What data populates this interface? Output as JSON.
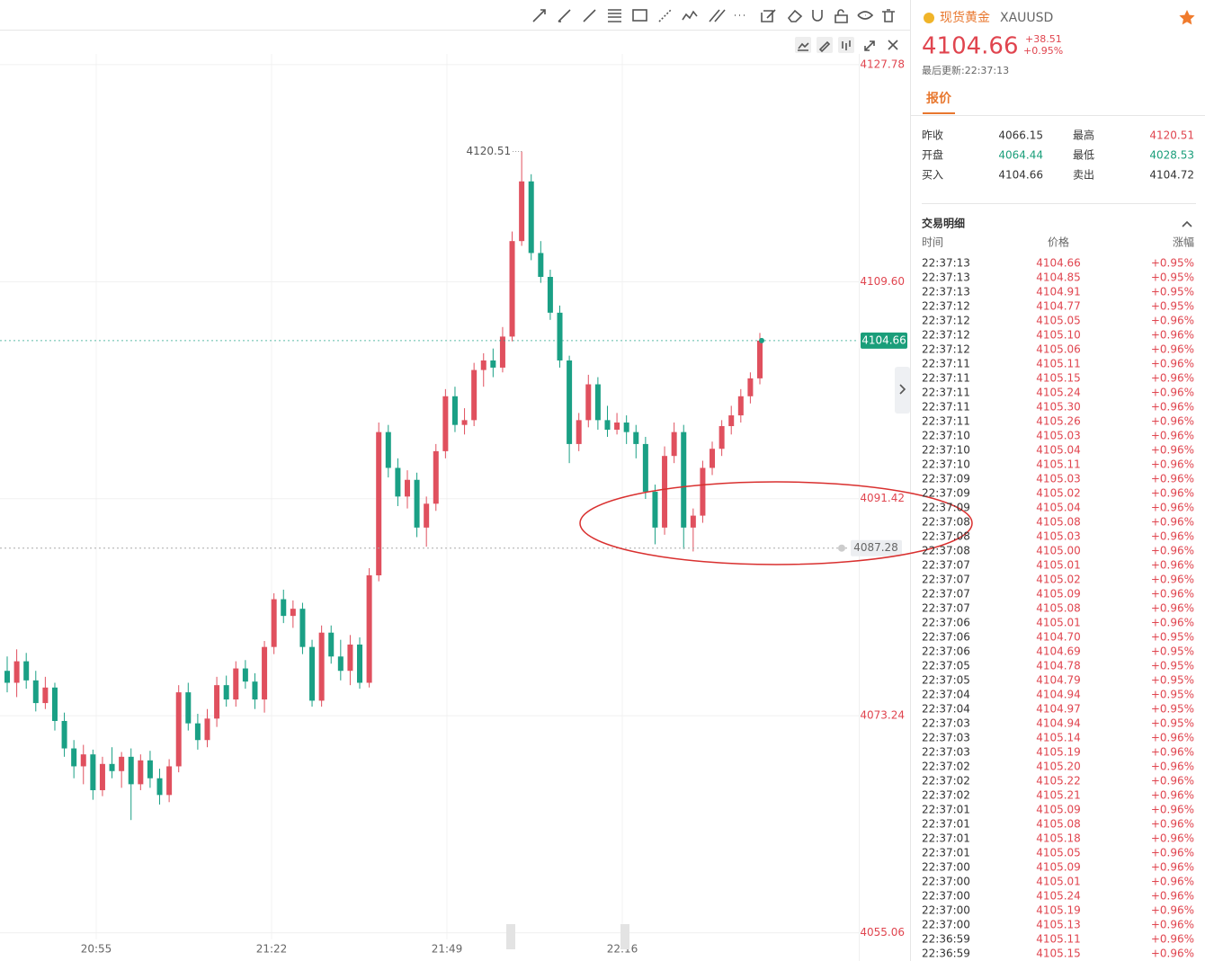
{
  "header": {
    "name": "现货黄金",
    "symbol": "XAUUSD",
    "price": "4104.66",
    "change": "+38.51",
    "change_pct": "+0.95%",
    "updated": "最后更新:22:37:13"
  },
  "tab": "报价",
  "stats": [
    {
      "label": "昨收",
      "value": "4066.15",
      "color": "#333333"
    },
    {
      "label": "最高",
      "value": "4120.51",
      "color": "#e0454f"
    },
    {
      "label": "开盘",
      "value": "4064.44",
      "color": "#1a9e7a"
    },
    {
      "label": "最低",
      "value": "4028.53",
      "color": "#1a9e7a"
    },
    {
      "label": "买入",
      "value": "4104.66",
      "color": "#333333"
    },
    {
      "label": "卖出",
      "value": "4104.72",
      "color": "#333333"
    }
  ],
  "trades": {
    "title": "交易明细",
    "columns": [
      "时间",
      "价格",
      "涨幅"
    ],
    "rows": [
      [
        "22:37:13",
        "4104.66",
        "+0.95%"
      ],
      [
        "22:37:13",
        "4104.85",
        "+0.95%"
      ],
      [
        "22:37:13",
        "4104.91",
        "+0.95%"
      ],
      [
        "22:37:12",
        "4104.77",
        "+0.95%"
      ],
      [
        "22:37:12",
        "4105.05",
        "+0.96%"
      ],
      [
        "22:37:12",
        "4105.10",
        "+0.96%"
      ],
      [
        "22:37:12",
        "4105.06",
        "+0.96%"
      ],
      [
        "22:37:11",
        "4105.11",
        "+0.96%"
      ],
      [
        "22:37:11",
        "4105.15",
        "+0.96%"
      ],
      [
        "22:37:11",
        "4105.24",
        "+0.96%"
      ],
      [
        "22:37:11",
        "4105.30",
        "+0.96%"
      ],
      [
        "22:37:11",
        "4105.26",
        "+0.96%"
      ],
      [
        "22:37:10",
        "4105.03",
        "+0.96%"
      ],
      [
        "22:37:10",
        "4105.04",
        "+0.96%"
      ],
      [
        "22:37:10",
        "4105.11",
        "+0.96%"
      ],
      [
        "22:37:09",
        "4105.03",
        "+0.96%"
      ],
      [
        "22:37:09",
        "4105.02",
        "+0.96%"
      ],
      [
        "22:37:09",
        "4105.04",
        "+0.96%"
      ],
      [
        "22:37:08",
        "4105.08",
        "+0.96%"
      ],
      [
        "22:37:08",
        "4105.03",
        "+0.96%"
      ],
      [
        "22:37:08",
        "4105.00",
        "+0.96%"
      ],
      [
        "22:37:07",
        "4105.01",
        "+0.96%"
      ],
      [
        "22:37:07",
        "4105.02",
        "+0.96%"
      ],
      [
        "22:37:07",
        "4105.09",
        "+0.96%"
      ],
      [
        "22:37:07",
        "4105.08",
        "+0.96%"
      ],
      [
        "22:37:06",
        "4105.01",
        "+0.96%"
      ],
      [
        "22:37:06",
        "4104.70",
        "+0.95%"
      ],
      [
        "22:37:06",
        "4104.69",
        "+0.95%"
      ],
      [
        "22:37:05",
        "4104.78",
        "+0.95%"
      ],
      [
        "22:37:05",
        "4104.79",
        "+0.95%"
      ],
      [
        "22:37:04",
        "4104.94",
        "+0.95%"
      ],
      [
        "22:37:04",
        "4104.97",
        "+0.95%"
      ],
      [
        "22:37:03",
        "4104.94",
        "+0.95%"
      ],
      [
        "22:37:03",
        "4105.14",
        "+0.96%"
      ],
      [
        "22:37:03",
        "4105.19",
        "+0.96%"
      ],
      [
        "22:37:02",
        "4105.20",
        "+0.96%"
      ],
      [
        "22:37:02",
        "4105.22",
        "+0.96%"
      ],
      [
        "22:37:02",
        "4105.21",
        "+0.96%"
      ],
      [
        "22:37:01",
        "4105.09",
        "+0.96%"
      ],
      [
        "22:37:01",
        "4105.08",
        "+0.96%"
      ],
      [
        "22:37:01",
        "4105.18",
        "+0.96%"
      ],
      [
        "22:37:01",
        "4105.05",
        "+0.96%"
      ],
      [
        "22:37:00",
        "4105.09",
        "+0.96%"
      ],
      [
        "22:37:00",
        "4105.01",
        "+0.96%"
      ],
      [
        "22:37:00",
        "4105.24",
        "+0.96%"
      ],
      [
        "22:37:00",
        "4105.19",
        "+0.96%"
      ],
      [
        "22:37:00",
        "4105.13",
        "+0.96%"
      ],
      [
        "22:36:59",
        "4105.11",
        "+0.96%"
      ],
      [
        "22:36:59",
        "4105.15",
        "+0.96%"
      ]
    ]
  },
  "chart": {
    "type": "candlestick",
    "ylim": [
      4054.5,
      4128.3
    ],
    "yticks": [
      {
        "value": 4127.78,
        "label": "4127.78"
      },
      {
        "value": 4109.6,
        "label": "4109.60"
      },
      {
        "value": 4091.42,
        "label": "4091.42"
      },
      {
        "value": 4073.24,
        "label": "4073.24"
      },
      {
        "value": 4055.06,
        "label": "4055.06"
      }
    ],
    "time_labels": [
      "20:55",
      "21:22",
      "21:49",
      "22:16"
    ],
    "up_color": "#e0505e",
    "down_color": "#1aa085",
    "grid": true,
    "last_price": 4104.66,
    "alert_price": 4087.28,
    "high_label": 4120.51,
    "candles": [
      [
        4077.0,
        4078.2,
        4075.2,
        4076.0
      ],
      [
        4076.0,
        4078.8,
        4074.8,
        4077.8
      ],
      [
        4077.8,
        4078.5,
        4075.5,
        4076.2
      ],
      [
        4076.2,
        4077.0,
        4073.6,
        4074.3
      ],
      [
        4074.3,
        4076.5,
        4073.8,
        4075.6
      ],
      [
        4075.6,
        4076.0,
        4072.0,
        4072.8
      ],
      [
        4072.8,
        4073.5,
        4069.8,
        4070.5
      ],
      [
        4070.5,
        4071.2,
        4068.0,
        4069.0
      ],
      [
        4069.0,
        4070.8,
        4067.5,
        4070.0
      ],
      [
        4070.0,
        4070.4,
        4066.2,
        4067.0
      ],
      [
        4067.0,
        4069.8,
        4066.5,
        4069.2
      ],
      [
        4069.2,
        4070.6,
        4068.0,
        4068.6
      ],
      [
        4068.6,
        4070.2,
        4067.2,
        4069.8
      ],
      [
        4069.8,
        4070.5,
        4064.5,
        4067.5
      ],
      [
        4067.5,
        4070.0,
        4067.0,
        4069.5
      ],
      [
        4069.5,
        4070.3,
        4067.2,
        4068.0
      ],
      [
        4068.0,
        4068.8,
        4065.8,
        4066.6
      ],
      [
        4066.6,
        4069.6,
        4066.0,
        4069.0
      ],
      [
        4069.0,
        4075.8,
        4068.5,
        4075.2
      ],
      [
        4075.2,
        4076.0,
        4072.0,
        4072.6
      ],
      [
        4072.6,
        4073.4,
        4070.4,
        4071.2
      ],
      [
        4071.2,
        4073.8,
        4070.6,
        4073.0
      ],
      [
        4073.0,
        4076.5,
        4072.3,
        4075.8
      ],
      [
        4075.8,
        4076.6,
        4074.0,
        4074.6
      ],
      [
        4074.6,
        4077.8,
        4074.0,
        4077.2
      ],
      [
        4077.2,
        4077.9,
        4075.5,
        4076.1
      ],
      [
        4076.1,
        4076.8,
        4073.8,
        4074.6
      ],
      [
        4074.6,
        4079.5,
        4073.5,
        4079.0
      ],
      [
        4079.0,
        4083.5,
        4078.4,
        4083.0
      ],
      [
        4083.0,
        4083.8,
        4081.0,
        4081.6
      ],
      [
        4081.6,
        4082.9,
        4080.6,
        4082.2
      ],
      [
        4082.2,
        4082.7,
        4078.4,
        4079.0
      ],
      [
        4079.0,
        4079.6,
        4074.0,
        4074.5
      ],
      [
        4074.5,
        4080.8,
        4074.0,
        4080.2
      ],
      [
        4080.2,
        4080.8,
        4077.6,
        4078.2
      ],
      [
        4078.2,
        4079.6,
        4076.2,
        4077.0
      ],
      [
        4077.0,
        4080.0,
        4075.8,
        4079.2
      ],
      [
        4079.2,
        4079.8,
        4075.5,
        4076.0
      ],
      [
        4076.0,
        4085.6,
        4075.6,
        4085.0
      ],
      [
        4085.0,
        4097.8,
        4084.5,
        4097.0
      ],
      [
        4097.0,
        4097.6,
        4093.2,
        4094.0
      ],
      [
        4094.0,
        4094.8,
        4090.8,
        4091.6
      ],
      [
        4091.6,
        4093.8,
        4090.6,
        4093.0
      ],
      [
        4093.0,
        4093.6,
        4088.2,
        4089.0
      ],
      [
        4089.0,
        4091.6,
        4087.4,
        4091.0
      ],
      [
        4091.0,
        4096.0,
        4090.4,
        4095.4
      ],
      [
        4095.4,
        4100.6,
        4094.8,
        4100.0
      ],
      [
        4100.0,
        4100.8,
        4097.0,
        4097.6
      ],
      [
        4097.6,
        4099.0,
        4096.8,
        4098.0
      ],
      [
        4098.0,
        4102.8,
        4097.5,
        4102.2
      ],
      [
        4102.2,
        4103.6,
        4100.8,
        4103.0
      ],
      [
        4103.0,
        4104.0,
        4101.6,
        4102.4
      ],
      [
        4102.4,
        4105.8,
        4102.0,
        4105.0
      ],
      [
        4105.0,
        4113.8,
        4104.6,
        4113.0
      ],
      [
        4113.0,
        4120.51,
        4112.6,
        4118.0
      ],
      [
        4118.0,
        4118.6,
        4111.4,
        4112.0
      ],
      [
        4112.0,
        4113.0,
        4109.5,
        4110.0
      ],
      [
        4110.0,
        4110.6,
        4106.4,
        4107.0
      ],
      [
        4107.0,
        4107.6,
        4102.4,
        4103.0
      ],
      [
        4103.0,
        4103.4,
        4094.4,
        4096.0
      ],
      [
        4096.0,
        4098.6,
        4095.4,
        4098.0
      ],
      [
        4098.0,
        4101.8,
        4097.4,
        4101.0
      ],
      [
        4101.0,
        4101.6,
        4097.2,
        4098.0
      ],
      [
        4098.0,
        4099.2,
        4096.6,
        4097.2
      ],
      [
        4097.2,
        4098.6,
        4096.8,
        4097.8
      ],
      [
        4097.8,
        4098.4,
        4096.0,
        4097.0
      ],
      [
        4097.0,
        4097.6,
        4094.8,
        4096.0
      ],
      [
        4096.0,
        4096.6,
        4091.4,
        4092.0
      ],
      [
        4092.0,
        4092.6,
        4087.6,
        4089.0
      ],
      [
        4089.0,
        4095.8,
        4088.4,
        4095.0
      ],
      [
        4095.0,
        4097.8,
        4094.4,
        4097.0
      ],
      [
        4097.0,
        4097.6,
        4087.2,
        4089.0
      ],
      [
        4089.0,
        4090.6,
        4087.0,
        4090.0
      ],
      [
        4090.0,
        4094.6,
        4089.4,
        4094.0
      ],
      [
        4094.0,
        4096.2,
        4093.4,
        4095.6
      ],
      [
        4095.6,
        4098.0,
        4095.0,
        4097.5
      ],
      [
        4097.5,
        4099.2,
        4096.8,
        4098.4
      ],
      [
        4098.4,
        4100.6,
        4097.8,
        4100.0
      ],
      [
        4100.0,
        4102.0,
        4099.4,
        4101.5
      ],
      [
        4101.5,
        4105.3,
        4101.0,
        4104.66
      ]
    ]
  }
}
